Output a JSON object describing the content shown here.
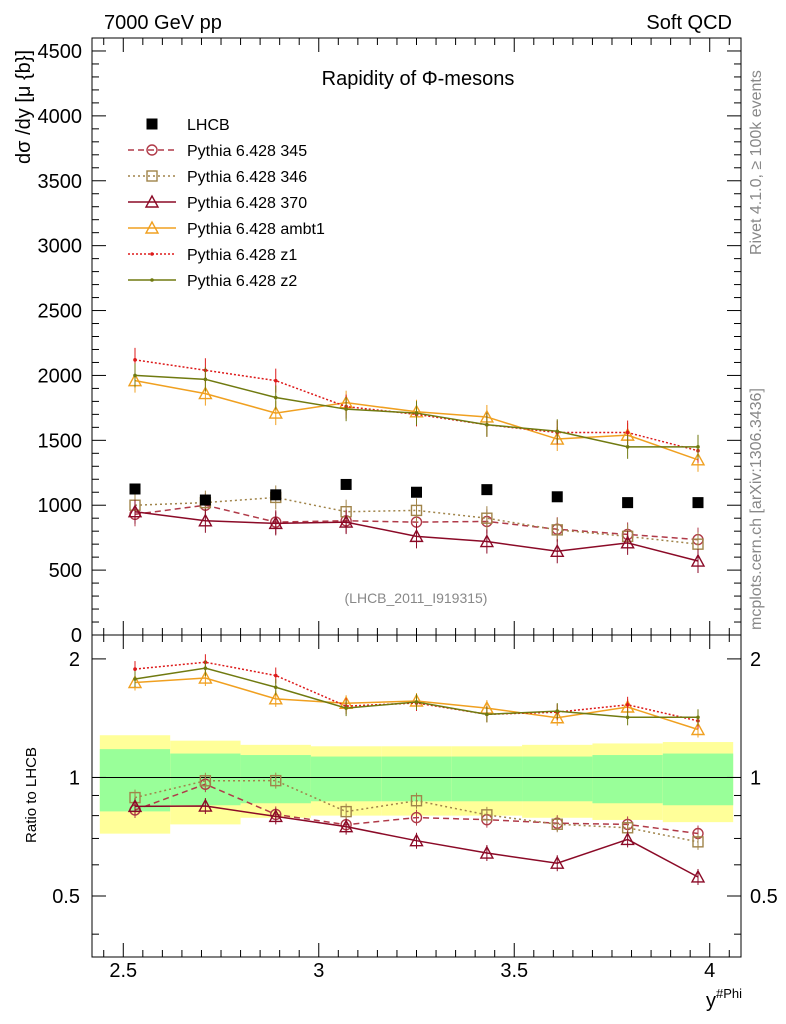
{
  "header": {
    "left": "7000 GeV pp",
    "right": "Soft QCD"
  },
  "side_labels": {
    "rivet": "Rivet 4.1.0, ≥ 100k events",
    "mcplots": "mcplots.cern.ch [arXiv:1306.3436]"
  },
  "chart_data": {
    "type": "line",
    "title": "Rapidity of Φ-mesons",
    "analysis_id": "(LHCB_2011_I919315)",
    "xlabel": "y#Phi",
    "xlabel_main": "y",
    "xlabel_sup": "#Phi",
    "ylabel": "dσ /dy [μ {b}]",
    "ylabel_ratio": "Ratio to LHCB",
    "xlim": [
      2.42,
      4.08
    ],
    "ylim": [
      0,
      4600
    ],
    "ratio_ylim": [
      0.35,
      2.3
    ],
    "x_ticks": [
      "2.5",
      "3",
      "3.5",
      "4"
    ],
    "y_ticks": [
      "0",
      "500",
      "1000",
      "1500",
      "2000",
      "2500",
      "3000",
      "3500",
      "4000",
      "4500"
    ],
    "ratio_ticks": [
      "0.5",
      "1",
      "2"
    ],
    "x": [
      2.53,
      2.71,
      2.89,
      3.07,
      3.25,
      3.43,
      3.61,
      3.79,
      3.97
    ],
    "bin_edges": [
      2.44,
      2.62,
      2.8,
      2.98,
      3.16,
      3.34,
      3.52,
      3.7,
      3.88,
      4.06
    ],
    "data": {
      "name": "LHCB",
      "values": [
        1125,
        1040,
        1080,
        1160,
        1100,
        1120,
        1065,
        1020,
        1020
      ]
    },
    "band_inner": [
      0.18,
      0.15,
      0.14,
      0.13,
      0.13,
      0.13,
      0.13,
      0.14,
      0.15
    ],
    "band_outer": [
      0.28,
      0.24,
      0.21,
      0.2,
      0.2,
      0.2,
      0.21,
      0.22,
      0.23
    ],
    "series": [
      {
        "name": "Pythia 6.428 345",
        "color": "#b03a48",
        "dash": "6,4",
        "marker": "circle",
        "values": [
          930,
          1000,
          870,
          880,
          870,
          875,
          815,
          775,
          735
        ]
      },
      {
        "name": "Pythia 6.428 346",
        "color": "#a0844a",
        "dash": "2,3",
        "marker": "square",
        "values": [
          1000,
          1020,
          1060,
          950,
          960,
          900,
          810,
          760,
          700
        ]
      },
      {
        "name": "Pythia 6.428 370",
        "color": "#8b0a27",
        "dash": "",
        "marker": "triangle",
        "values": [
          950,
          880,
          860,
          870,
          760,
          720,
          645,
          710,
          570
        ]
      },
      {
        "name": "Pythia 6.428 ambt1",
        "color": "#f0a020",
        "dash": "",
        "marker": "triangle",
        "values": [
          1960,
          1860,
          1710,
          1790,
          1720,
          1680,
          1510,
          1540,
          1350
        ]
      },
      {
        "name": "Pythia 6.428 z1",
        "color": "#dd1a1a",
        "dash": "2,2",
        "marker": "dot",
        "values": [
          2120,
          2040,
          1960,
          1760,
          1700,
          1620,
          1560,
          1560,
          1420
        ]
      },
      {
        "name": "Pythia 6.428 z2",
        "color": "#707a10",
        "dash": "",
        "marker": "dot",
        "values": [
          2000,
          1970,
          1830,
          1740,
          1710,
          1620,
          1570,
          1450,
          1450
        ]
      }
    ]
  }
}
